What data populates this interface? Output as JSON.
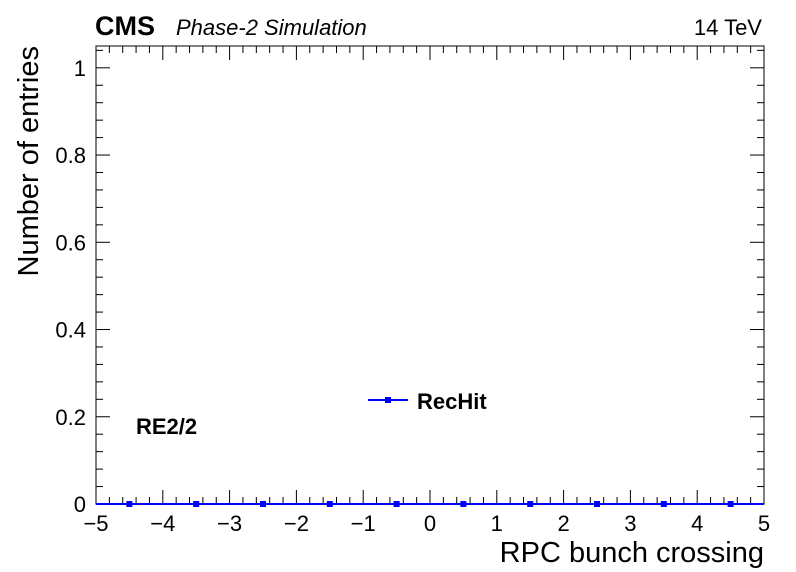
{
  "chart_data": {
    "type": "scatter",
    "header": {
      "experiment": "CMS",
      "subtitle": "Phase-2 Simulation",
      "energy": "14 TeV"
    },
    "title": "",
    "xlabel": "RPC bunch crossing",
    "ylabel": "Number of entries",
    "xlim": [
      -5,
      5
    ],
    "ylim": [
      0,
      1.05
    ],
    "xticks": [
      -5,
      -4,
      -3,
      -2,
      -1,
      0,
      1,
      2,
      3,
      4,
      5
    ],
    "xtick_labels": [
      "−5",
      "−4",
      "−3",
      "−2",
      "−1",
      "0",
      "1",
      "2",
      "3",
      "4",
      "5"
    ],
    "yticks": [
      0,
      0.2,
      0.4,
      0.6,
      0.8,
      1
    ],
    "ytick_labels": [
      "0",
      "0.2",
      "0.4",
      "0.6",
      "0.8",
      "1"
    ],
    "grid": false,
    "annotation": "RE2/2",
    "legend_position": "center",
    "series": [
      {
        "name": "RecHit",
        "color": "#0000ff",
        "marker": "square",
        "x": [
          -4.5,
          -3.5,
          -2.5,
          -1.5,
          -0.5,
          0.5,
          1.5,
          2.5,
          3.5,
          4.5
        ],
        "y": [
          0,
          0,
          0,
          0,
          0,
          0,
          0,
          0,
          0,
          0
        ]
      }
    ]
  }
}
